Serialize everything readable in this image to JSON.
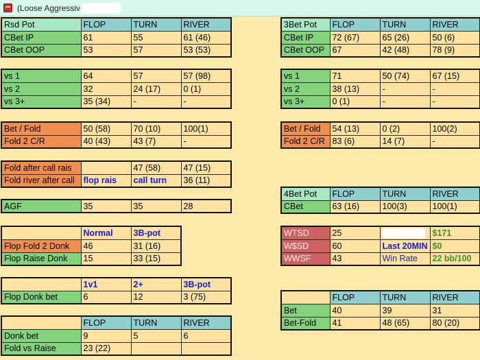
{
  "window": {
    "title": "(Loose Aggressive,"
  },
  "rsd": {
    "headers": [
      "Rsd Pot",
      "FLOP",
      "TURN",
      "RIVER"
    ],
    "rows": [
      [
        "CBet IP",
        "61",
        "55",
        "61 (46)"
      ],
      [
        "CBet OOP",
        "53",
        "57",
        "53 (53)"
      ]
    ]
  },
  "vs_left": {
    "rows": [
      [
        "vs 1",
        "64",
        "57",
        "57 (98)"
      ],
      [
        "vs 2",
        "32",
        "24 (17)",
        "0 (1)"
      ],
      [
        "vs 3+",
        "35 (34)",
        "-",
        "-"
      ]
    ]
  },
  "bf_left": {
    "rows": [
      [
        "Bet / Fold",
        "50 (58)",
        "70 (10)",
        "100(1)"
      ],
      [
        "Fold 2 C/R",
        "40 (43)",
        "43 (7)",
        "-"
      ]
    ]
  },
  "far": {
    "rows": [
      [
        "Fold after call rais",
        "",
        "47 (58)",
        "47 (15)"
      ],
      [
        "Fold river after call",
        "flop rais",
        "call turn",
        "36 (11)"
      ]
    ]
  },
  "agf": {
    "row": [
      "AGF",
      "35",
      "35",
      "28"
    ]
  },
  "donk": {
    "headers": [
      "",
      "Normal",
      "3B-pot"
    ],
    "rows": [
      [
        "Flop Fold 2 Donk",
        "46",
        "31 (16)"
      ],
      [
        "Flop Raise Donk",
        "15",
        "33 (15)"
      ]
    ]
  },
  "donk_bet": {
    "headers": [
      "",
      "1v1",
      "2+",
      "3B-pot"
    ],
    "row": [
      "Flop Donk bet",
      "6",
      "12",
      "3 (75)"
    ]
  },
  "bottom_left": {
    "headers": [
      "",
      "FLOP",
      "TURN",
      "RIVER"
    ],
    "rows": [
      [
        "Donk bet",
        "9",
        "5",
        "6"
      ],
      [
        "Fold vs Raise",
        "23 (22)",
        "",
        ""
      ]
    ]
  },
  "bet3": {
    "headers": [
      "3Bet  Pot",
      "FLOP",
      "TURN",
      "RIVER"
    ],
    "rows": [
      [
        "CBet IP",
        "72 (67)",
        "65 (26)",
        "50 (6)"
      ],
      [
        "CBet OOP",
        "67",
        "42 (48)",
        "78 (9)"
      ]
    ]
  },
  "vs_right": {
    "rows": [
      [
        "vs 1",
        "71",
        "50 (74)",
        "67 (15)"
      ],
      [
        "vs 2",
        "38 (13)",
        "-",
        "-"
      ],
      [
        "vs 3+",
        "0 (1)",
        "-",
        "-"
      ]
    ]
  },
  "bf_right": {
    "rows": [
      [
        "Bet / Fold",
        "54 (13)",
        "0 (2)",
        "100(2)"
      ],
      [
        "Fold 2 C/R",
        "83 (6)",
        "14 (7)",
        "-"
      ]
    ]
  },
  "bet4": {
    "headers": [
      "4Bet Pot",
      "FLOP",
      "TURN",
      "RIVER"
    ],
    "row": [
      "CBet",
      "63 (16)",
      "100(3)",
      "100(1)"
    ]
  },
  "showdown": {
    "rows": [
      [
        "WTSD",
        "25",
        "",
        "$171"
      ],
      [
        "W$SD",
        "60",
        "Last 20MIN",
        "$0"
      ],
      [
        "WWSF",
        "43",
        "Win Rate",
        "22 bb/100"
      ]
    ]
  },
  "bet_right": {
    "headers": [
      "",
      "FLOP",
      "TURN",
      "RIVER"
    ],
    "rows": [
      [
        "Bet",
        "40",
        "39",
        "31"
      ],
      [
        "Bet-Fold",
        "41",
        "48 (65)",
        "80 (20)"
      ]
    ]
  },
  "colors": {
    "background": "#fde9a8",
    "cell": "#fde2a0",
    "header_top_left": "#a8e8c4",
    "header": "#8fcfd0",
    "label_green": "#82d37c",
    "label_orange": "#f08e4e",
    "label_red": "#cf6161",
    "blue_text": "#1818d8",
    "green_text": "#3f8f2b",
    "titlebar": "#d6f7ea"
  },
  "icons": {
    "app": "poker-app-icon"
  }
}
